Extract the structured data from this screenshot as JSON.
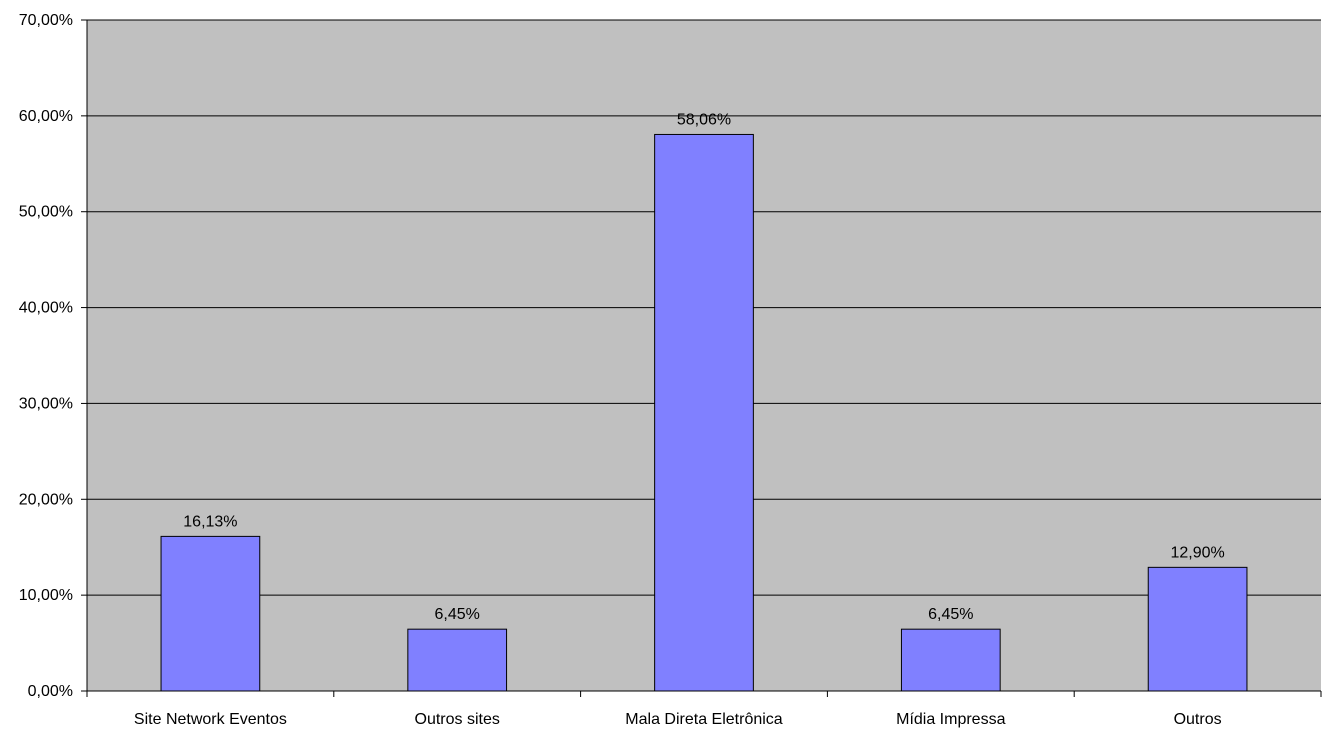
{
  "chart_data": {
    "type": "bar",
    "categories": [
      "Site Network Eventos",
      "Outros sites",
      "Mala Direta Eletrônica",
      "Mídia Impressa",
      "Outros"
    ],
    "values": [
      16.13,
      6.45,
      58.06,
      6.45,
      12.9
    ],
    "data_labels": [
      "16,13%",
      "6,45%",
      "58,06%",
      "6,45%",
      "12,90%"
    ],
    "yticks": [
      0,
      10,
      20,
      30,
      40,
      50,
      60,
      70
    ],
    "ytick_labels": [
      "0,00%",
      "10,00%",
      "20,00%",
      "30,00%",
      "40,00%",
      "50,00%",
      "60,00%",
      "70,00%"
    ],
    "ylim": [
      0,
      70
    ],
    "title": "",
    "xlabel": "",
    "ylabel": "",
    "grid": true,
    "legend": "none",
    "colors": {
      "plot_background": "#c0c0c0",
      "bar_fill": "#8080ff",
      "bar_stroke": "#000000",
      "gridline": "#000000"
    }
  }
}
